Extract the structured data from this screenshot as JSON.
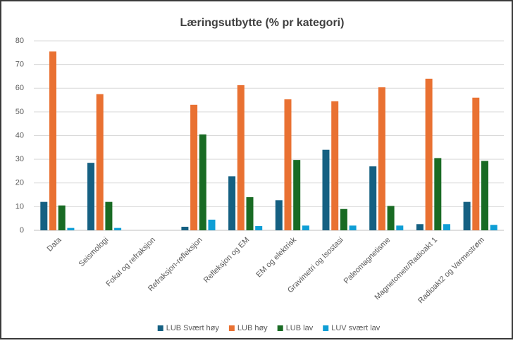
{
  "chart_data": {
    "type": "bar",
    "title": "Læringsutbytte (% pr kategori)",
    "categories": [
      "Data",
      "Seismologi",
      "Fokal og refraksjon",
      "Refraksjon-refleksjon",
      "Refleksjon og EM",
      "EM og elektrisk",
      "Gravimetri og Isostasi",
      "Paleomagnetisme",
      "Magnetometr/Radioakt 1",
      "Radioakt2 og Varmestrøm"
    ],
    "series": [
      {
        "name": "LUB Svært høy",
        "color": "#156082",
        "values": [
          12,
          28.5,
          0,
          1.5,
          22.8,
          12.7,
          34,
          27,
          2.6,
          12
        ]
      },
      {
        "name": "LUB høy",
        "color": "#e97132",
        "values": [
          75.5,
          57.5,
          0,
          53,
          61.3,
          55.3,
          54.5,
          60.4,
          64,
          56
        ]
      },
      {
        "name": "LUB lav",
        "color": "#196b24",
        "values": [
          10.5,
          12,
          0,
          40.5,
          14,
          29.7,
          9,
          10.3,
          30.5,
          29.3
        ]
      },
      {
        "name": "LUV svært lav",
        "color": "#0f9ed5",
        "values": [
          1,
          1,
          0,
          4.5,
          1.8,
          2,
          2,
          2,
          2.6,
          2.3
        ]
      }
    ],
    "ylim": [
      0,
      80
    ],
    "yticks": [
      0,
      10,
      20,
      30,
      40,
      50,
      60,
      70,
      80
    ],
    "grid": true,
    "legend": "bottom"
  }
}
